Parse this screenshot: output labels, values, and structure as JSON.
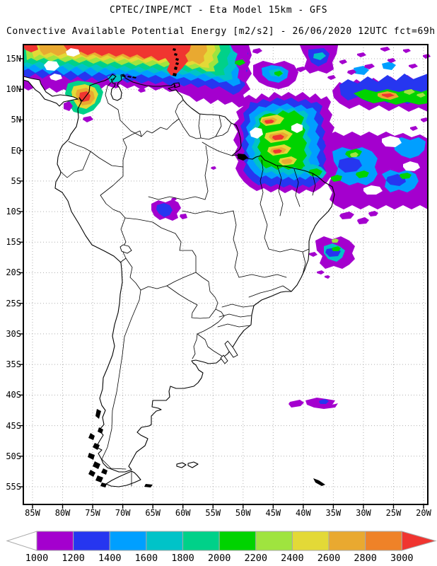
{
  "header": {
    "title": "CPTEC/INPE/MCT -  Eta Model 15km - GFS",
    "subtitle": "Convective Available Potential Energy [m2/s2] - 26/06/2020 12UTC fct=69h"
  },
  "map": {
    "lat_ticks": [
      "15N",
      "10N",
      "5N",
      "EQ",
      "5S",
      "10S",
      "15S",
      "20S",
      "25S",
      "30S",
      "35S",
      "40S",
      "45S",
      "50S",
      "55S"
    ],
    "lon_ticks": [
      "85W",
      "80W",
      "75W",
      "70W",
      "65W",
      "60W",
      "55W",
      "50W",
      "45W",
      "40W",
      "35W",
      "30W",
      "25W",
      "20W"
    ],
    "grid_color": "#b0b0b0",
    "frame_color": "#000000"
  },
  "colorbar": {
    "tick_labels": [
      "1000",
      "1200",
      "1400",
      "1600",
      "1800",
      "2000",
      "2200",
      "2400",
      "2600",
      "2800",
      "3000"
    ],
    "segment_colors": [
      "#A400CE",
      "#2636F0",
      "#009FFF",
      "#00C3C8",
      "#00D189",
      "#00D300",
      "#9FE43F",
      "#E3D937",
      "#E9A930",
      "#EF8228"
    ],
    "under_arrow_color": "#FFFFFF",
    "over_arrow_color": "#F03530",
    "outline_color": "#A9A9A9"
  }
}
